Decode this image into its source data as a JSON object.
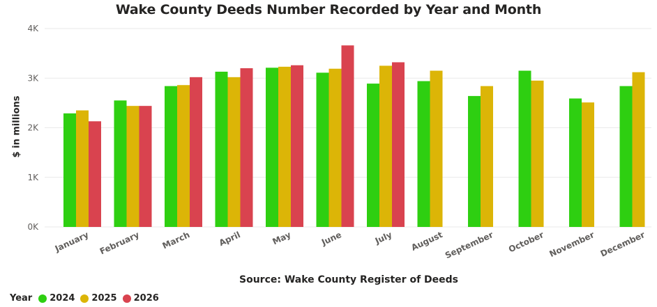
{
  "chart_data": {
    "type": "bar",
    "title": "Wake County Deeds Number Recorded by Year and Month",
    "xlabel": "Source: Wake County Register of Deeds",
    "ylabel": "$ in millions",
    "ylim": [
      0,
      4000
    ],
    "yticks": [
      0,
      1000,
      2000,
      3000,
      4000
    ],
    "ytick_labels": [
      "0K",
      "1K",
      "2K",
      "3K",
      "4K"
    ],
    "categories": [
      "January",
      "February",
      "March",
      "April",
      "May",
      "June",
      "July",
      "August",
      "September",
      "October",
      "November",
      "December"
    ],
    "legend_title": "Year",
    "legend_position": "bottom-left",
    "grid": true,
    "series": [
      {
        "name": "2024",
        "color": "#2ecf11",
        "values": [
          2290,
          2550,
          2840,
          3130,
          3210,
          3110,
          2890,
          2940,
          2640,
          3150,
          2590,
          2840
        ]
      },
      {
        "name": "2025",
        "color": "#dcb507",
        "values": [
          2350,
          2440,
          2860,
          3020,
          3230,
          3190,
          3250,
          3150,
          2840,
          2950,
          2510,
          3120
        ]
      },
      {
        "name": "2026",
        "color": "#d9434f",
        "values": [
          2130,
          2440,
          3020,
          3200,
          3260,
          3660,
          3320,
          null,
          null,
          null,
          null,
          null
        ]
      }
    ]
  }
}
